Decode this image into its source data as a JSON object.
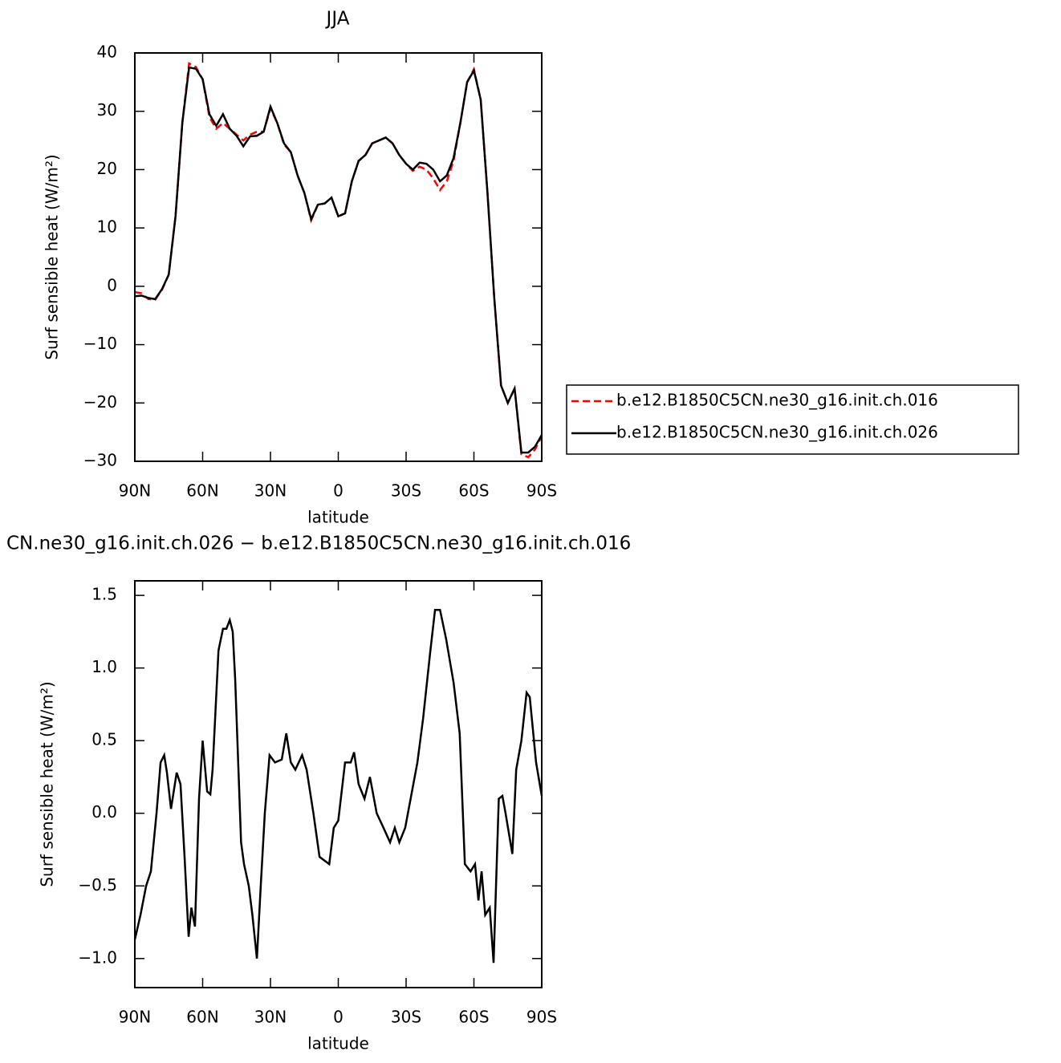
{
  "chart_data": [
    {
      "type": "line",
      "title": "JJA",
      "xlabel": "latitude",
      "ylabel": "Surf sensible heat (W/m²)",
      "x": [
        90,
        87,
        84,
        81,
        78,
        75,
        72,
        69,
        66,
        63,
        60,
        57,
        54,
        51,
        48,
        45,
        42,
        39,
        36,
        33,
        30,
        27,
        24,
        21,
        18,
        15,
        12,
        9,
        6,
        3,
        0,
        -3,
        -6,
        -9,
        -12,
        -15,
        -18,
        -21,
        -24,
        -27,
        -30,
        -33,
        -36,
        -39,
        -42,
        -45,
        -48,
        -51,
        -54,
        -57,
        -60,
        -63,
        -66,
        -69,
        -72,
        -75,
        -78,
        -81,
        -84,
        -87,
        -90
      ],
      "xlim": [
        90,
        -90
      ],
      "xticks": [
        {
          "value": 90,
          "label": "90N"
        },
        {
          "value": 60,
          "label": "60N"
        },
        {
          "value": 30,
          "label": "30N"
        },
        0,
        {
          "value": -30,
          "label": "30S"
        },
        {
          "value": -60,
          "label": "60S"
        },
        {
          "value": -90,
          "label": "90S"
        }
      ],
      "ylim": [
        -30,
        40
      ],
      "yticks": [
        40,
        30,
        20,
        10,
        0,
        {
          "value": -10,
          "label": "−10"
        },
        {
          "value": -20,
          "label": "−20"
        },
        {
          "value": -30,
          "label": "−30"
        }
      ],
      "legend": "right",
      "series": [
        {
          "name": "b.e12.B1850C5CN.ne30_g16.init.ch.016",
          "color": "#ff0000",
          "linestyle": "dashed",
          "values": [
            -1,
            -1.2,
            -2.2,
            -2.3,
            -0.6,
            2,
            12,
            28,
            38.2,
            37.6,
            35.5,
            29,
            27,
            28,
            27,
            26,
            25,
            26,
            26.5,
            26.5,
            30.5,
            28,
            24.3,
            23,
            19,
            16,
            11.3,
            14,
            14.2,
            15.2,
            12,
            12.5,
            18,
            21.5,
            22.5,
            24.5,
            25,
            25.5,
            24.5,
            22.5,
            21,
            19.8,
            20.5,
            20,
            18.5,
            16.5,
            18,
            21.5,
            28,
            35,
            37.2,
            32,
            16,
            -2,
            -17,
            -20,
            -17.5,
            -28.8,
            -29.3,
            -28,
            -25.7
          ]
        },
        {
          "name": "b.e12.B1850C5CN.ne30_g16.init.ch.026",
          "color": "#000000",
          "linestyle": "solid",
          "values": [
            -1.7,
            -1.6,
            -2,
            -2.2,
            -0.5,
            2,
            12,
            28,
            37.5,
            37.3,
            35.5,
            29.5,
            27.5,
            29.5,
            27,
            25.8,
            24,
            25.7,
            25.8,
            26.5,
            30.8,
            28,
            24.5,
            23,
            19,
            16,
            11.5,
            14,
            14.2,
            15.2,
            12,
            12.5,
            18,
            21.5,
            22.5,
            24.5,
            25,
            25.5,
            24.5,
            22.5,
            21,
            20,
            21.2,
            21,
            20,
            18,
            19,
            22,
            28,
            35,
            37,
            32,
            16,
            -2,
            -17,
            -20,
            -17.5,
            -28.5,
            -28.5,
            -27.5,
            -25.5
          ]
        }
      ]
    },
    {
      "type": "line",
      "title": "CN.ne30_g16.init.ch.026 − b.e12.B1850C5CN.ne30_g16.init.ch.016",
      "xlabel": "latitude",
      "ylabel": "Surf sensible heat (W/m²)",
      "x": [
        90,
        87.5,
        85,
        82.9,
        80.4,
        78.6,
        77,
        75.8,
        74,
        71.5,
        69.8,
        68,
        66.2,
        65,
        63.4,
        61.6,
        60,
        58,
        56.6,
        55.6,
        53,
        51,
        49.5,
        48,
        46.7,
        45.6,
        43,
        41.7,
        39.6,
        38,
        36,
        34.3,
        32.5,
        30.4,
        28,
        25,
        23,
        21,
        19,
        16,
        14,
        11,
        8.3,
        4,
        2,
        0,
        -3,
        -5.5,
        -7,
        -9,
        -11.6,
        -14,
        -17,
        -20,
        -22.9,
        -25,
        -27,
        -29.6,
        -32,
        -35,
        -37.5,
        -40.6,
        -42.8,
        -45,
        -47.7,
        -51,
        -53.7,
        -56,
        -58.5,
        -60.5,
        -62,
        -63.4,
        -65,
        -67,
        -68.7,
        -71,
        -72.6,
        -74,
        -77,
        -78.7,
        -81,
        -83.3,
        -84.7,
        -87.5,
        -90
      ],
      "xlim": [
        90,
        -90
      ],
      "xticks": [
        {
          "value": 90,
          "label": "90N"
        },
        {
          "value": 60,
          "label": "60N"
        },
        {
          "value": 30,
          "label": "30N"
        },
        0,
        {
          "value": -30,
          "label": "30S"
        },
        {
          "value": -60,
          "label": "60S"
        },
        {
          "value": -90,
          "label": "90S"
        }
      ],
      "ylim": [
        -1.2,
        1.6
      ],
      "yticks": [
        1.5,
        {
          "value": 1,
          "label": "1.0"
        },
        0.5,
        {
          "value": 0,
          "label": "0.0"
        },
        {
          "value": -0.5,
          "label": "−0.5"
        },
        {
          "value": -1,
          "label": "−1.0"
        }
      ],
      "series": [
        {
          "color": "#000000",
          "linestyle": "solid",
          "values": [
            -0.87,
            -0.7,
            -0.5,
            -0.4,
            0,
            0.35,
            0.4,
            0.28,
            0.03,
            0.28,
            0.2,
            -0.3,
            -0.85,
            -0.65,
            -0.78,
            0.1,
            0.5,
            0.15,
            0.13,
            0.3,
            1.12,
            1.27,
            1.27,
            1.33,
            1.25,
            0.92,
            -0.2,
            -0.35,
            -0.5,
            -0.7,
            -1,
            -0.5,
            0,
            0.4,
            0.35,
            0.37,
            0.55,
            0.35,
            0.3,
            0.4,
            0.3,
            0,
            -0.3,
            -0.35,
            -0.1,
            -0.05,
            0.35,
            0.35,
            0.42,
            0.2,
            0.1,
            0.25,
            0,
            -0.1,
            -0.2,
            -0.1,
            -0.2,
            -0.1,
            0.1,
            0.35,
            0.65,
            1.1,
            1.4,
            1.4,
            1.2,
            0.9,
            0.55,
            -0.35,
            -0.4,
            -0.35,
            -0.6,
            -0.4,
            -0.7,
            -0.65,
            -1.03,
            0.1,
            0.12,
            0,
            -0.28,
            0.3,
            0.5,
            0.83,
            0.8,
            0.35,
            0.12
          ]
        }
      ]
    }
  ]
}
